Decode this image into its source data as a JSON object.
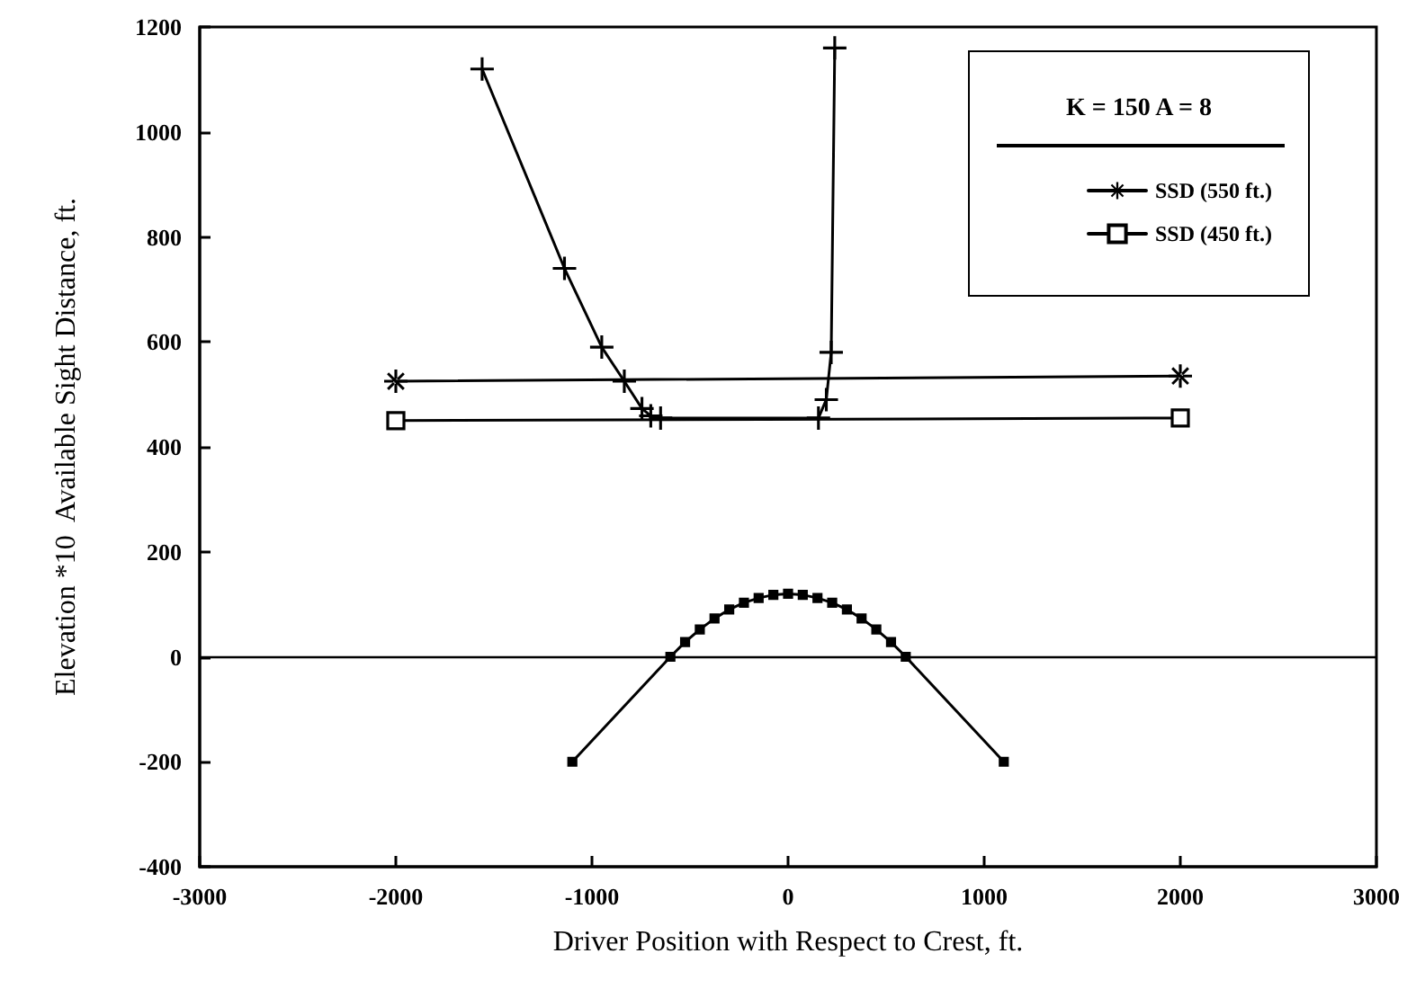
{
  "chart_data": {
    "type": "line",
    "xlabel": "Driver Position with Respect to Crest, ft.",
    "ylabel": "Elevation *10  Available Sight Distance, ft.",
    "legend_title": "K = 150  A = 8",
    "series": [
      {
        "color": "#000000",
        "marker": "cross",
        "x": [
          -1560,
          -1140,
          -950,
          -835,
          -745,
          -700,
          -650,
          155,
          195,
          220,
          238
        ],
        "values": [
          1120,
          740,
          590,
          525,
          473,
          459,
          455,
          455,
          490,
          580,
          1160
        ]
      },
      {
        "name": "SSD (550 ft.)",
        "color": "#000000",
        "marker": "star",
        "x": [
          -2000,
          2000
        ],
        "values": [
          525,
          535
        ]
      },
      {
        "name": "SSD (450 ft.)",
        "color": "#000000",
        "marker": "square",
        "x": [
          -2000,
          2000
        ],
        "values": [
          450,
          455
        ]
      },
      {
        "color": "#000000",
        "marker": "square",
        "x": [
          -1100,
          -600,
          -525,
          -450,
          -375,
          -300,
          -225,
          -150,
          -75,
          0,
          75,
          150,
          225,
          300,
          375,
          450,
          525,
          600,
          1100
        ],
        "values": [
          -200,
          0,
          28,
          52,
          73,
          90,
          103,
          112,
          118,
          120,
          118,
          112,
          103,
          90,
          73,
          52,
          28,
          0,
          -200
        ]
      }
    ],
    "xlim": [
      -3000,
      3000
    ],
    "xticks": [
      -3000,
      -2000,
      -1000,
      0,
      1000,
      2000,
      3000
    ],
    "ylim": [
      -400,
      1200
    ],
    "yticks": [
      -400,
      -200,
      0,
      200,
      400,
      600,
      800,
      1000,
      1200
    ],
    "ref_lines": [
      {
        "axis": "y",
        "value": 0,
        "color": "#000000"
      }
    ],
    "grid": false,
    "legend": "top right",
    "line_style": "solid"
  }
}
